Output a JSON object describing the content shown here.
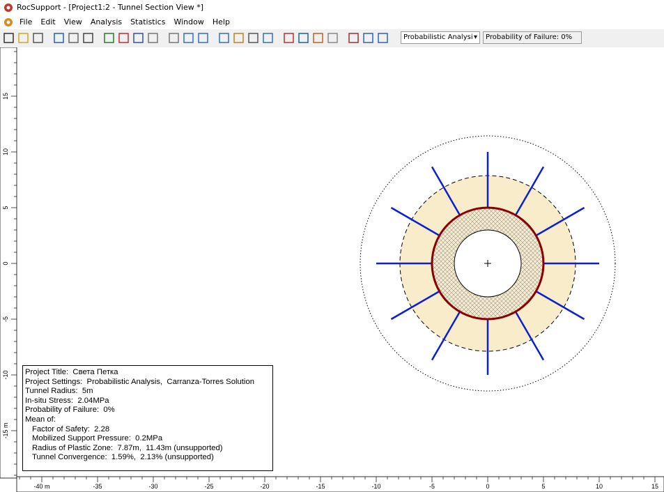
{
  "window": {
    "title": "RocSupport - [Project1:2 - Tunnel Section View *]"
  },
  "menu": [
    "File",
    "Edit",
    "View",
    "Analysis",
    "Statistics",
    "Window",
    "Help"
  ],
  "toolbar": {
    "analysis_dropdown": "Probabilistic Analysi",
    "status": "Probability of Failure: 0%"
  },
  "ruler": {
    "x_labels": [
      "-40 m",
      "-35",
      "-30",
      "-25",
      "-20",
      "-15",
      "-10",
      "-5",
      "0",
      "5",
      "10",
      "15"
    ],
    "y_labels": [
      "15",
      "10",
      "5",
      "0",
      "-5",
      "-10",
      "-15 m"
    ]
  },
  "info_box": {
    "lines": [
      "Project Title:  Света Петка",
      "Project Settings:  Probabilistic Analysis,  Carranza-Torres Solution",
      "Tunnel Radius:  5m",
      "In-situ Stress:  2.04MPa",
      "Probability of Failure:  0%",
      "Mean of:"
    ],
    "mean_items": [
      "Factor of Safety:  2.28",
      "Mobilized Support Pressure:  0.2MPa",
      "Radius of Plastic Zone:  7.87m,  11.43m (unsupported)",
      "Tunnel Convergence:  1.59%,  2.13% (unsupported)"
    ]
  }
}
